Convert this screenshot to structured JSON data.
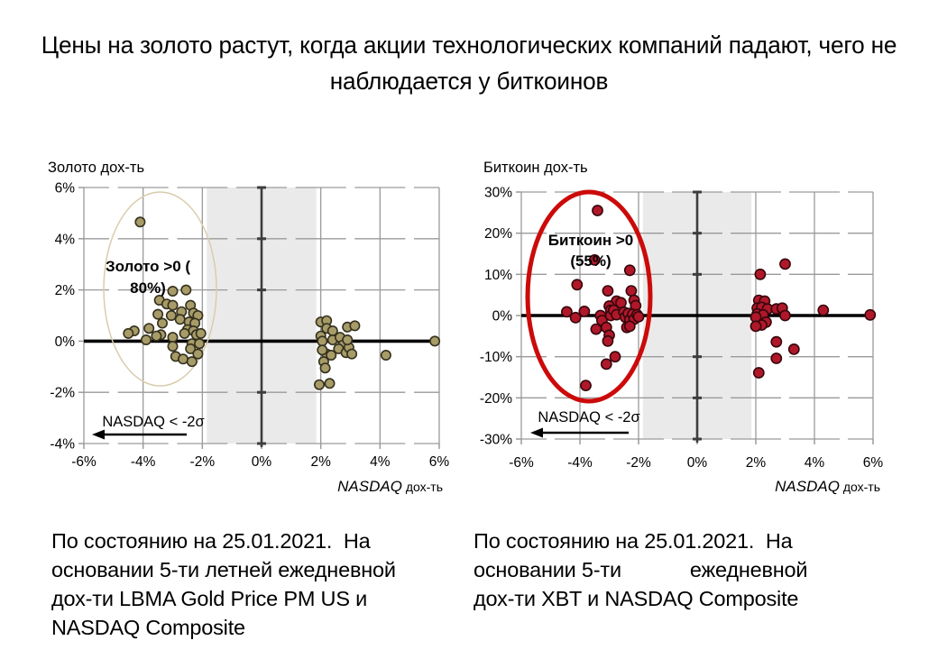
{
  "title": "Цены на золото растут, когда акции технологических компаний падают, чего не\nнаблюдается у биткоинов",
  "captions": {
    "gold": "По состоянию на 25.01.2021.  На\nосновании 5-ти летней ежедневной\nдох-ти LBMA Gold Price PM US и\nNASDAQ Composite",
    "bitcoin": "По состоянию на 25.01.2021.  На\nосновании 5-ти            ежедневной\nдох-ти XBT и NASDAQ Composite"
  },
  "chart_data": [
    {
      "type": "scatter",
      "ylabel": "Золото дох-ть",
      "xlabel_italic": "NASDAQ",
      "xlabel_suffix": "дох-ть",
      "xlim": [
        -6,
        6
      ],
      "ylim": [
        -4,
        6
      ],
      "x_ticks": [
        -6,
        -4,
        -2,
        0,
        2,
        4,
        6
      ],
      "y_ticks": [
        6,
        4,
        2,
        0,
        -2,
        -4
      ],
      "tick_suffix": "%",
      "band": [
        -1.85,
        1.85
      ],
      "annotation_lines": [
        "Золото >0 (",
        "80%)"
      ],
      "arrow_label": "NASDAQ < -2σ",
      "colors": {
        "point": "#a79b68",
        "point_stroke": "#35311e",
        "ellipse": "#d9cdad",
        "band": "#eaeaea",
        "grid": "#9a9a9a",
        "center_axis": "#3d3d3d",
        "zero_line": "#000000"
      },
      "points": [
        [
          -4.1,
          4.65
        ],
        [
          -3.0,
          1.95
        ],
        [
          -2.55,
          2.0
        ],
        [
          -3.45,
          1.6
        ],
        [
          -3.2,
          1.45
        ],
        [
          -3.0,
          1.4
        ],
        [
          -2.4,
          1.4
        ],
        [
          -3.5,
          1.05
        ],
        [
          -3.05,
          1.0
        ],
        [
          -2.7,
          1.15
        ],
        [
          -2.3,
          1.1
        ],
        [
          -2.15,
          1.0
        ],
        [
          -3.35,
          0.7
        ],
        [
          -2.75,
          0.85
        ],
        [
          -2.45,
          0.75
        ],
        [
          -2.25,
          0.7
        ],
        [
          -3.8,
          0.5
        ],
        [
          -4.3,
          0.4
        ],
        [
          -4.5,
          0.3
        ],
        [
          -2.5,
          0.45
        ],
        [
          -2.3,
          0.4
        ],
        [
          -3.4,
          0.25
        ],
        [
          -2.6,
          0.3
        ],
        [
          -2.2,
          0.25
        ],
        [
          -2.05,
          0.3
        ],
        [
          -3.9,
          0.05
        ],
        [
          -3.55,
          0.2
        ],
        [
          -3.0,
          0.15
        ],
        [
          -2.35,
          -0.1
        ],
        [
          -2.1,
          -0.1
        ],
        [
          -2.4,
          -0.3
        ],
        [
          -3.0,
          -0.2
        ],
        [
          -2.9,
          -0.6
        ],
        [
          -2.65,
          -0.7
        ],
        [
          -2.35,
          -0.8
        ],
        [
          -2.15,
          -0.5
        ],
        [
          2.0,
          0.75
        ],
        [
          2.2,
          0.8
        ],
        [
          2.0,
          0.2
        ],
        [
          2.2,
          0.5
        ],
        [
          2.05,
          0.0
        ],
        [
          2.2,
          -0.5
        ],
        [
          2.05,
          -0.35
        ],
        [
          2.1,
          -0.8
        ],
        [
          2.15,
          -1.05
        ],
        [
          2.4,
          0.4
        ],
        [
          2.4,
          0.05
        ],
        [
          2.35,
          -0.55
        ],
        [
          1.95,
          -1.7
        ],
        [
          2.3,
          -1.65
        ],
        [
          2.65,
          0.15
        ],
        [
          2.75,
          -0.15
        ],
        [
          2.6,
          -0.3
        ],
        [
          2.85,
          -0.45
        ],
        [
          2.9,
          0.55
        ],
        [
          3.15,
          0.6
        ],
        [
          2.95,
          -0.25
        ],
        [
          2.9,
          0.05
        ],
        [
          3.05,
          -0.5
        ],
        [
          4.2,
          -0.55
        ],
        [
          5.85,
          0.0
        ]
      ]
    },
    {
      "type": "scatter",
      "ylabel": "Биткоин дох-ть",
      "xlabel_italic": "NASDAQ",
      "xlabel_suffix": "дох-ть",
      "xlim": [
        -6,
        6
      ],
      "ylim": [
        -30,
        30
      ],
      "x_ticks": [
        -6,
        -4,
        -2,
        0,
        2,
        4,
        6
      ],
      "y_ticks": [
        30,
        20,
        10,
        0,
        -10,
        -20,
        -30
      ],
      "tick_suffix": "%",
      "band": [
        -1.85,
        1.85
      ],
      "annotation_lines": [
        "Биткоин >0",
        "(55%)"
      ],
      "arrow_label": "NASDAQ < -2σ",
      "colors": {
        "point": "#b0182a",
        "point_stroke": "#36060c",
        "ellipse": "#cc0a0a",
        "band": "#eaeaea",
        "grid": "#9a9a9a",
        "center_axis": "#3d3d3d",
        "zero_line": "#000000"
      },
      "points": [
        [
          -3.4,
          25.5
        ],
        [
          -3.5,
          13.5
        ],
        [
          -2.3,
          11.0
        ],
        [
          -4.1,
          7.5
        ],
        [
          -3.05,
          6.0
        ],
        [
          -2.25,
          6.0
        ],
        [
          -2.75,
          3.5
        ],
        [
          -2.6,
          3.1
        ],
        [
          -2.15,
          3.7
        ],
        [
          -2.1,
          2.4
        ],
        [
          -3.0,
          2.3
        ],
        [
          -2.95,
          1.3
        ],
        [
          -4.45,
          0.9
        ],
        [
          -4.15,
          -0.5
        ],
        [
          -3.85,
          1.0
        ],
        [
          -3.3,
          0.0
        ],
        [
          -3.25,
          -1.2
        ],
        [
          -2.95,
          0.0
        ],
        [
          -2.85,
          1.3
        ],
        [
          -2.75,
          0.2
        ],
        [
          -2.5,
          0.8
        ],
        [
          -2.45,
          -0.4
        ],
        [
          -2.35,
          0.5
        ],
        [
          -2.3,
          -1.0
        ],
        [
          -2.2,
          0.3
        ],
        [
          -2.15,
          -0.9
        ],
        [
          -2.05,
          0.2
        ],
        [
          -2.0,
          -0.3
        ],
        [
          -3.45,
          -3.3
        ],
        [
          -3.1,
          -2.9
        ],
        [
          -3.0,
          -4.8
        ],
        [
          -3.05,
          -6.2
        ],
        [
          -2.4,
          -2.9
        ],
        [
          -2.3,
          -2.6
        ],
        [
          -2.8,
          -10.0
        ],
        [
          -3.1,
          -11.8
        ],
        [
          -3.8,
          -17.0
        ],
        [
          3.0,
          12.5
        ],
        [
          2.15,
          10.0
        ],
        [
          2.1,
          3.7
        ],
        [
          2.3,
          3.5
        ],
        [
          2.05,
          1.8
        ],
        [
          2.2,
          2.0
        ],
        [
          2.4,
          1.6
        ],
        [
          2.7,
          1.6
        ],
        [
          2.9,
          1.8
        ],
        [
          2.05,
          0.4
        ],
        [
          2.25,
          0.15
        ],
        [
          2.0,
          -0.4
        ],
        [
          2.35,
          -1.6
        ],
        [
          3.0,
          0.0
        ],
        [
          2.2,
          -2.3
        ],
        [
          2.0,
          -2.6
        ],
        [
          4.3,
          1.3
        ],
        [
          5.9,
          0.15
        ],
        [
          2.7,
          -6.4
        ],
        [
          3.3,
          -8.2
        ],
        [
          2.7,
          -10.4
        ],
        [
          2.1,
          -13.9
        ]
      ]
    }
  ]
}
